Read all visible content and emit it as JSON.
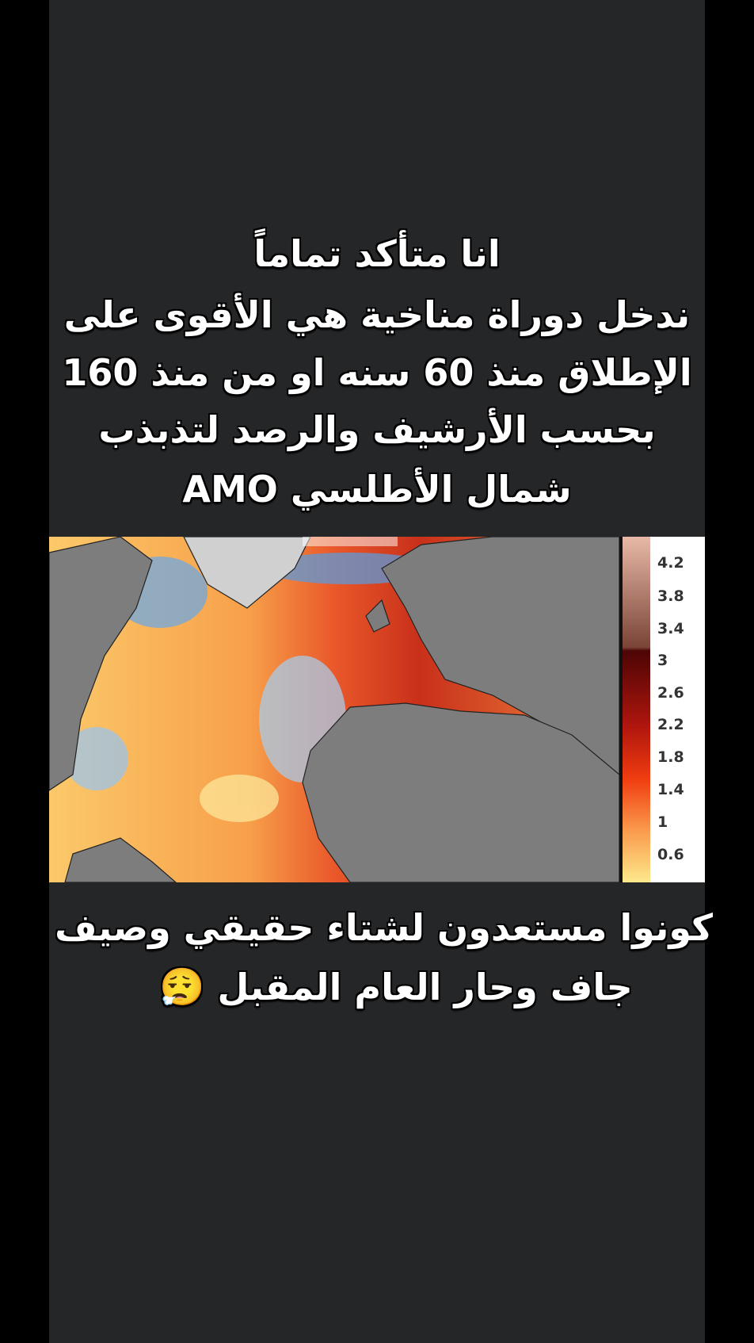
{
  "post": {
    "top_text": [
      "انا متأكد  تماماً",
      "ندخل دوراة مناخية هي الأقوى على",
      "الإطلاق منذ 60 سنه او من منذ  160",
      "بحسب الأرشيف والرصد لتذبذب",
      "شمال الأطلسي AMO"
    ],
    "bottom_text": [
      "كونوا مستعدون لشتاء حقيقي وصيف",
      "جاف وحار العام المقبل 😮‍💨"
    ]
  },
  "map": {
    "colorbar_labels": [
      "4.2",
      "3.8",
      "3.4",
      "3",
      "2.6",
      "2.2",
      "1.8",
      "1.4",
      "1",
      "0.6"
    ],
    "colors": {
      "land": "#7d7d7d",
      "warm_low": "#fde79a",
      "warm_mid": "#f26a2a",
      "warm_high": "#7a0a0a",
      "cool": "#6fa8e0",
      "ice": "#d9d9d9"
    }
  }
}
